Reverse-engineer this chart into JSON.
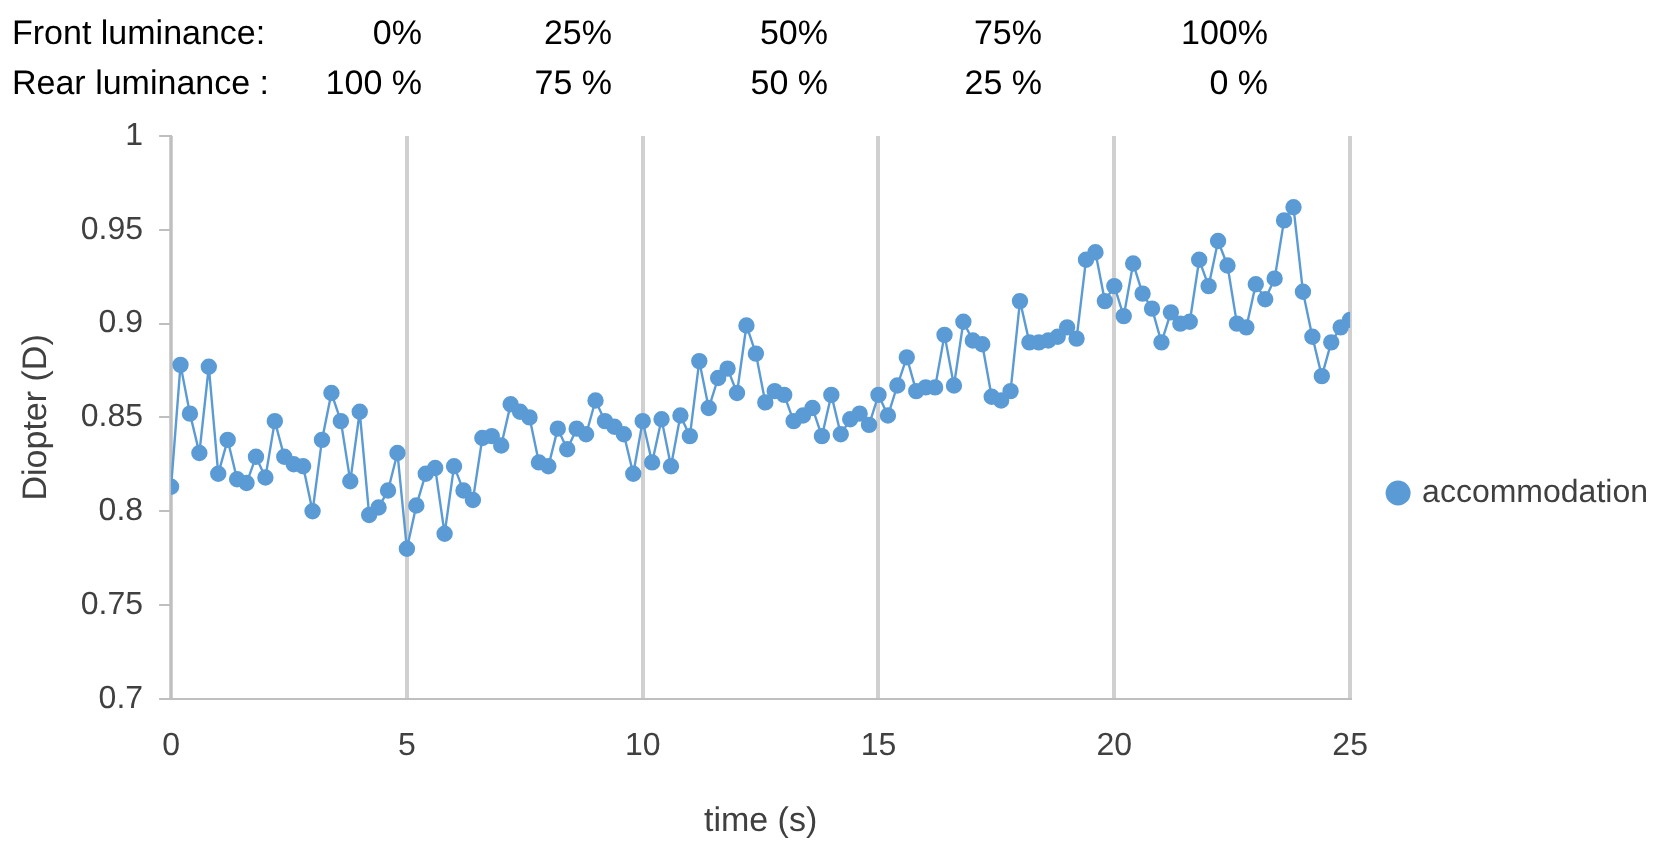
{
  "chart_data": {
    "type": "line",
    "xlabel": "time (s)",
    "ylabel": "Diopter (D)",
    "annotations": [
      "Front luminance:",
      "0%",
      "25%",
      "50%",
      "75%",
      "100%",
      "Rear luminance :",
      "100 %",
      "75 %",
      "50 %",
      "25 %",
      "0 %"
    ],
    "xlim": [
      0,
      25
    ],
    "xticks": [
      0,
      5,
      10,
      15,
      20,
      25
    ],
    "ylim": [
      0.7,
      1
    ],
    "yticks": [
      0.7,
      0.75,
      0.8,
      0.85,
      0.9,
      0.95,
      1
    ],
    "grid": "x",
    "legend": "right",
    "marker": "circle",
    "line_style": "solid",
    "series": [
      {
        "name": "accommodation",
        "color": "#5b9bd5",
        "x": [
          0,
          0.2,
          0.4,
          0.6,
          0.8,
          1,
          1.2,
          1.4,
          1.6,
          1.8,
          2,
          2.2,
          2.4,
          2.6,
          2.8,
          3,
          3.2,
          3.4,
          3.6,
          3.8,
          4,
          4.2,
          4.4,
          4.6,
          4.8,
          5,
          5.2,
          5.4,
          5.6,
          5.8,
          6,
          6.2,
          6.4,
          6.6,
          6.8,
          7,
          7.2,
          7.4,
          7.6,
          7.8,
          8,
          8.2,
          8.4,
          8.6,
          8.8,
          9,
          9.2,
          9.4,
          9.6,
          9.8,
          10,
          10.2,
          10.4,
          10.6,
          10.8,
          11,
          11.2,
          11.4,
          11.6,
          11.8,
          12,
          12.2,
          12.4,
          12.6,
          12.8,
          13,
          13.2,
          13.4,
          13.6,
          13.8,
          14,
          14.2,
          14.4,
          14.6,
          14.8,
          15,
          15.2,
          15.4,
          15.6,
          15.8,
          16,
          16.2,
          16.4,
          16.6,
          16.8,
          17,
          17.2,
          17.4,
          17.6,
          17.8,
          18,
          18.2,
          18.4,
          18.6,
          18.8,
          19,
          19.2,
          19.4,
          19.6,
          19.8,
          20,
          20.2,
          20.4,
          20.6,
          20.8,
          21,
          21.2,
          21.4,
          21.6,
          21.8,
          22,
          22.2,
          22.4,
          22.6,
          22.8,
          23,
          23.2,
          23.4,
          23.6,
          23.8,
          24,
          24.2,
          24.4,
          24.6,
          24.8,
          25
        ],
        "values": [
          0.813,
          0.878,
          0.852,
          0.831,
          0.877,
          0.82,
          0.838,
          0.817,
          0.815,
          0.829,
          0.818,
          0.848,
          0.829,
          0.825,
          0.824,
          0.8,
          0.838,
          0.863,
          0.848,
          0.816,
          0.853,
          0.798,
          0.802,
          0.811,
          0.831,
          0.78,
          0.803,
          0.82,
          0.823,
          0.788,
          0.824,
          0.811,
          0.806,
          0.839,
          0.84,
          0.835,
          0.857,
          0.853,
          0.85,
          0.826,
          0.824,
          0.844,
          0.833,
          0.844,
          0.841,
          0.859,
          0.848,
          0.845,
          0.841,
          0.82,
          0.848,
          0.826,
          0.849,
          0.824,
          0.851,
          0.84,
          0.88,
          0.855,
          0.871,
          0.876,
          0.863,
          0.899,
          0.884,
          0.858,
          0.864,
          0.862,
          0.848,
          0.851,
          0.855,
          0.84,
          0.862,
          0.841,
          0.849,
          0.852,
          0.846,
          0.862,
          0.851,
          0.867,
          0.882,
          0.864,
          0.866,
          0.866,
          0.894,
          0.867,
          0.901,
          0.891,
          0.889,
          0.861,
          0.859,
          0.864,
          0.912,
          0.89,
          0.89,
          0.891,
          0.893,
          0.898,
          0.892,
          0.934,
          0.938,
          0.912,
          0.92,
          0.904,
          0.932,
          0.916,
          0.908,
          0.89,
          0.906,
          0.9,
          0.901,
          0.934,
          0.92,
          0.944,
          0.931,
          0.9,
          0.898,
          0.921,
          0.913,
          0.924,
          0.955,
          0.962,
          0.917,
          0.893,
          0.872,
          0.89,
          0.898,
          0.902
        ]
      }
    ]
  }
}
